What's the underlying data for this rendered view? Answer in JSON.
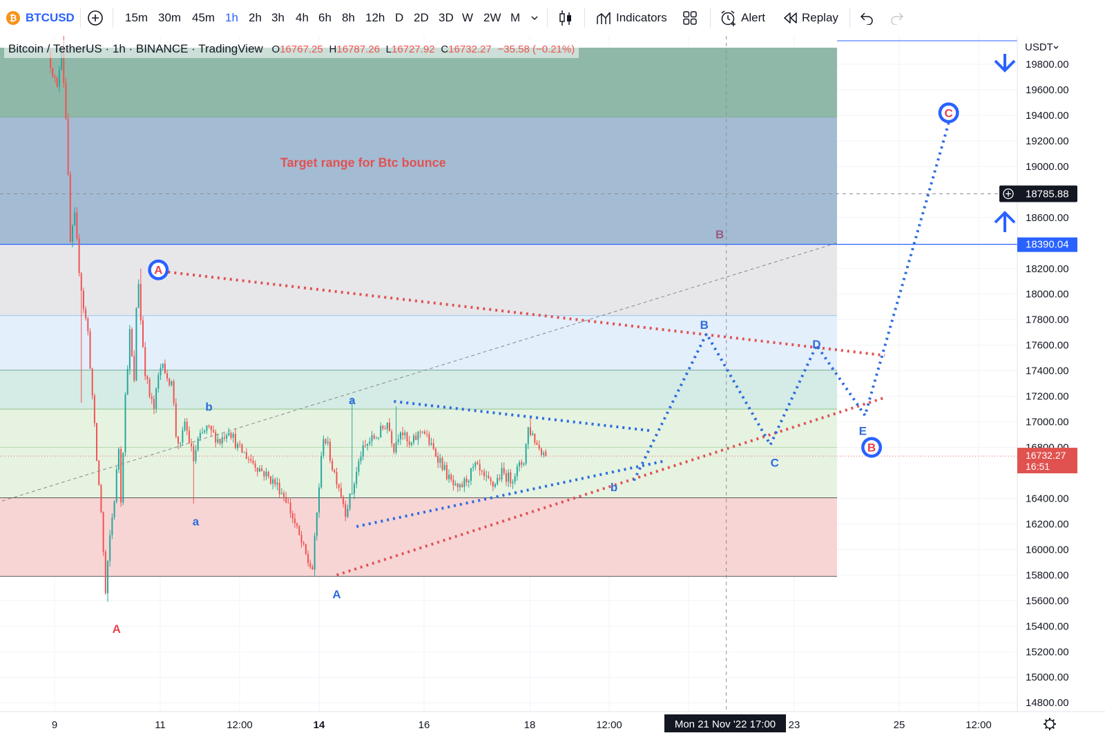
{
  "toolbar": {
    "symbol": "BTCUSD",
    "intervals": [
      "15m",
      "30m",
      "45m",
      "1h",
      "2h",
      "3h",
      "4h",
      "6h",
      "8h",
      "12h",
      "D",
      "2D",
      "3D",
      "W",
      "2W",
      "M"
    ],
    "active_interval": "1h",
    "indicators_label": "Indicators",
    "alert_label": "Alert",
    "replay_label": "Replay",
    "icons": [
      "bitcoin-logo-icon",
      "add-symbol-icon",
      "chevron-down-icon",
      "candles-icon",
      "indicators-icon",
      "layout-grid-icon",
      "alarm-clock-icon",
      "replay-icon",
      "undo-icon",
      "redo-icon"
    ]
  },
  "legend": {
    "title": "Bitcoin / TetherUS · 1h · BINANCE · TradingView",
    "open_label": "O",
    "open": "16767.25",
    "high_label": "H",
    "high": "16787.26",
    "low_label": "L",
    "low": "16727.92",
    "close_label": "C",
    "close": "16732.27",
    "change": "−35.58 (−0.21%)"
  },
  "colors": {
    "up": "#26a69a",
    "down": "#ef5350",
    "accent": "#2962ff",
    "zone_green": "#8fb8a9",
    "zone_blue": "#a4bcd3",
    "zone_grey": "#e7e7ea",
    "zone_lightblue": "#e3effb",
    "zone_teal": "#d5ebe5",
    "zone_lightgreen": "#e6f3e1",
    "zone_red": "#f7d5d5"
  },
  "chart_data": {
    "type": "candlestick",
    "title": "Bitcoin / TetherUS · 1h · BINANCE · TradingView",
    "currency": "USDT",
    "ylim": [
      14700,
      19930
    ],
    "y_ticks": [
      19800,
      19600,
      19400,
      19200,
      19000,
      18600,
      18200,
      18000,
      17800,
      17600,
      17400,
      17200,
      17000,
      16800,
      16400,
      16200,
      16000,
      15800,
      15600,
      15400,
      15200,
      15000,
      14800
    ],
    "x_ticks": [
      "9",
      "11",
      "12:00",
      "14",
      "16",
      "18",
      "12:00",
      "23",
      "25",
      "12:00"
    ],
    "crosshair_price": "18785.88",
    "crosshair_time": "Mon 21 Nov '22   17:00",
    "price_tags": [
      {
        "value": "18390.04",
        "kind": "level"
      },
      {
        "value": "16732.27",
        "countdown": "16:51",
        "kind": "last"
      }
    ],
    "zones": [
      {
        "name": "green",
        "from": 19386,
        "to": 19930
      },
      {
        "name": "blue",
        "from": 18390,
        "to": 19386
      },
      {
        "name": "grey",
        "from": 17832,
        "to": 18390
      },
      {
        "name": "lightblue",
        "from": 17405,
        "to": 17832
      },
      {
        "name": "teal",
        "from": 17100,
        "to": 17405
      },
      {
        "name": "lightgreen",
        "from": 16405,
        "to": 17100
      },
      {
        "name": "red",
        "from": 15790,
        "to": 16405
      }
    ],
    "candle_path": [
      [
        "Nov 8 22:00",
        19880
      ],
      [
        "Nov 9 02:00",
        19600
      ],
      [
        "Nov 9 04:00",
        19950
      ],
      [
        "Nov 9 06:00",
        19400
      ],
      [
        "Nov 9 08:00",
        18400
      ],
      [
        "Nov 9 10:00",
        18600
      ],
      [
        "Nov 9 12:00",
        18200
      ],
      [
        "Nov 9 14:00",
        17900
      ],
      [
        "Nov 9 16:00",
        17700
      ],
      [
        "Nov 9 18:00",
        17200
      ],
      [
        "Nov 9 20:00",
        16700
      ],
      [
        "Nov 9 22:00",
        16300
      ],
      [
        "Nov 10 00:00",
        15650
      ],
      [
        "Nov 10 02:00",
        16100
      ],
      [
        "Nov 10 04:00",
        16400
      ],
      [
        "Nov 10 06:00",
        16800
      ],
      [
        "Nov 10 07:00",
        16400
      ],
      [
        "Nov 10 09:00",
        17200
      ],
      [
        "Nov 10 11:00",
        17700
      ],
      [
        "Nov 10 13:00",
        17300
      ],
      [
        "Nov 10 14:00",
        17900
      ],
      [
        "Nov 10 15:00",
        18100
      ],
      [
        "Nov 10 16:00",
        17800
      ],
      [
        "Nov 10 18:00",
        17400
      ],
      [
        "Nov 10 20:00",
        17200
      ],
      [
        "Nov 10 22:00",
        17100
      ],
      [
        "Nov 11 00:00",
        17350
      ],
      [
        "Nov 11 02:00",
        17500
      ],
      [
        "Nov 11 04:00",
        17300
      ],
      [
        "Nov 11 06:00",
        17350
      ],
      [
        "Nov 11 08:00",
        16900
      ],
      [
        "Nov 11 10:00",
        16800
      ],
      [
        "Nov 11 12:00",
        17000
      ],
      [
        "Nov 11 14:00",
        16850
      ],
      [
        "Nov 11 16:00",
        16700
      ],
      [
        "Nov 11 18:00",
        16850
      ],
      [
        "Nov 11 22:00",
        16950
      ],
      [
        "Nov 12 04:00",
        16850
      ],
      [
        "Nov 12 08:00",
        16950
      ],
      [
        "Nov 12 12:00",
        16800
      ],
      [
        "Nov 12 18:00",
        16700
      ],
      [
        "Nov 13 00:00",
        16600
      ],
      [
        "Nov 13 06:00",
        16500
      ],
      [
        "Nov 13 10:00",
        16400
      ],
      [
        "Nov 13 14:00",
        16200
      ],
      [
        "Nov 13 20:00",
        15900
      ],
      [
        "Nov 13 22:00",
        15850
      ],
      [
        "Nov 14 01:00",
        16500
      ],
      [
        "Nov 14 03:00",
        16900
      ],
      [
        "Nov 14 05:00",
        16800
      ],
      [
        "Nov 14 07:00",
        16650
      ],
      [
        "Nov 14 10:00",
        16500
      ],
      [
        "Nov 14 13:00",
        16300
      ],
      [
        "Nov 14 16:00",
        16450
      ],
      [
        "Nov 14 20:00",
        16750
      ],
      [
        "Nov 15 00:00",
        16850
      ],
      [
        "Nov 15 04:00",
        16900
      ],
      [
        "Nov 15 08:00",
        17000
      ],
      [
        "Nov 15 11:00",
        16800
      ],
      [
        "Nov 15 14:00",
        16950
      ],
      [
        "Nov 15 18:00",
        16800
      ],
      [
        "Nov 16 00:00",
        16950
      ],
      [
        "Nov 16 04:00",
        16800
      ],
      [
        "Nov 16 08:00",
        16700
      ],
      [
        "Nov 16 12:00",
        16550
      ],
      [
        "Nov 16 16:00",
        16450
      ],
      [
        "Nov 16 20:00",
        16550
      ],
      [
        "Nov 17 00:00",
        16650
      ],
      [
        "Nov 17 04:00",
        16550
      ],
      [
        "Nov 17 08:00",
        16500
      ],
      [
        "Nov 17 12:00",
        16600
      ],
      [
        "Nov 17 16:00",
        16550
      ],
      [
        "Nov 17 20:00",
        16650
      ],
      [
        "Nov 17 22:00",
        16700
      ],
      [
        "Nov 18 00:00",
        16950
      ],
      [
        "Nov 18 02:00",
        16900
      ],
      [
        "Nov 18 04:00",
        16820
      ],
      [
        "Nov 18 06:00",
        16780
      ],
      [
        "Nov 18 08:00",
        16732
      ]
    ],
    "annotations": [
      {
        "text": "Target range for Btc bounce",
        "time": "Nov 14 20:00",
        "price": 19030,
        "color": "#e05252"
      },
      {
        "text": "B",
        "time": "Nov 21 14:00",
        "price": 18470,
        "color": "#9a5c80"
      },
      {
        "text": "A",
        "time": "Nov 10 23:00",
        "price": 18190,
        "color": "#e8414b",
        "circled": true,
        "ring": "#2962ff"
      },
      {
        "text": "A",
        "time": "Nov 10 04:00",
        "price": 15380,
        "color": "#e8414b"
      },
      {
        "text": "b",
        "time": "Nov 11 22:00",
        "price": 17120,
        "color": "#2d6cdf"
      },
      {
        "text": "a",
        "time": "Nov 11 16:00",
        "price": 16220,
        "color": "#2d6cdf"
      },
      {
        "text": "a",
        "time": "Nov 14 15:00",
        "price": 17170,
        "color": "#2d6cdf"
      },
      {
        "text": "A",
        "time": "Nov 14 08:00",
        "price": 15650,
        "color": "#2d6cdf"
      },
      {
        "text": "b",
        "time": "Nov 19 14:00",
        "price": 16490,
        "color": "#2d6cdf"
      },
      {
        "text": "B",
        "time": "Nov 21 07:00",
        "price": 17760,
        "color": "#2d6cdf"
      },
      {
        "text": "C",
        "time": "Nov 22 15:00",
        "price": 16680,
        "color": "#2d6cdf"
      },
      {
        "text": "D",
        "time": "Nov 23 10:00",
        "price": 17610,
        "color": "#2d6cdf"
      },
      {
        "text": "E",
        "time": "Nov 24 07:00",
        "price": 16930,
        "color": "#2d6cdf"
      },
      {
        "text": "B",
        "time": "Nov 24 11:00",
        "price": 16800,
        "color": "#e8414b",
        "circled": true,
        "ring": "#2962ff"
      },
      {
        "text": "C",
        "time": "Nov 25 22:00",
        "price": 19420,
        "color": "#e8414b",
        "circled": true,
        "ring": "#2962ff"
      }
    ],
    "trendlines": [
      {
        "style": "dotted",
        "color": "#e05252",
        "points": [
          [
            "Nov 10 19:00",
            18190
          ],
          [
            "Nov 24 17:00",
            17520
          ]
        ]
      },
      {
        "style": "dotted",
        "color": "#e05252",
        "points": [
          [
            "Nov 14 08:00",
            15800
          ],
          [
            "Nov 24 17:00",
            17190
          ]
        ]
      },
      {
        "style": "dotted",
        "color": "#2d6cdf",
        "points": [
          [
            "Nov 15 10:00",
            17160
          ],
          [
            "Nov 20 07:00",
            16930
          ]
        ]
      },
      {
        "style": "dotted",
        "color": "#2d6cdf",
        "points": [
          [
            "Nov 14 17:00",
            16180
          ],
          [
            "Nov 20 12:00",
            16690
          ]
        ]
      },
      {
        "style": "dotted",
        "color": "#2d6cdf",
        "points": [
          [
            "Nov 19 23:00",
            16540
          ],
          [
            "Nov 21 08:00",
            17690
          ],
          [
            "Nov 22 13:00",
            16820
          ],
          [
            "Nov 23 10:00",
            17600
          ],
          [
            "Nov 24 08:00",
            17050
          ],
          [
            "Nov 25 22:00",
            19340
          ]
        ]
      },
      {
        "style": "dashed",
        "color": "#888888",
        "points": [
          [
            "Nov 8 00:00",
            16380
          ],
          [
            "Nov 23 19:00",
            18400
          ]
        ]
      }
    ],
    "vertical_marker": "Nov 21 17:00"
  }
}
